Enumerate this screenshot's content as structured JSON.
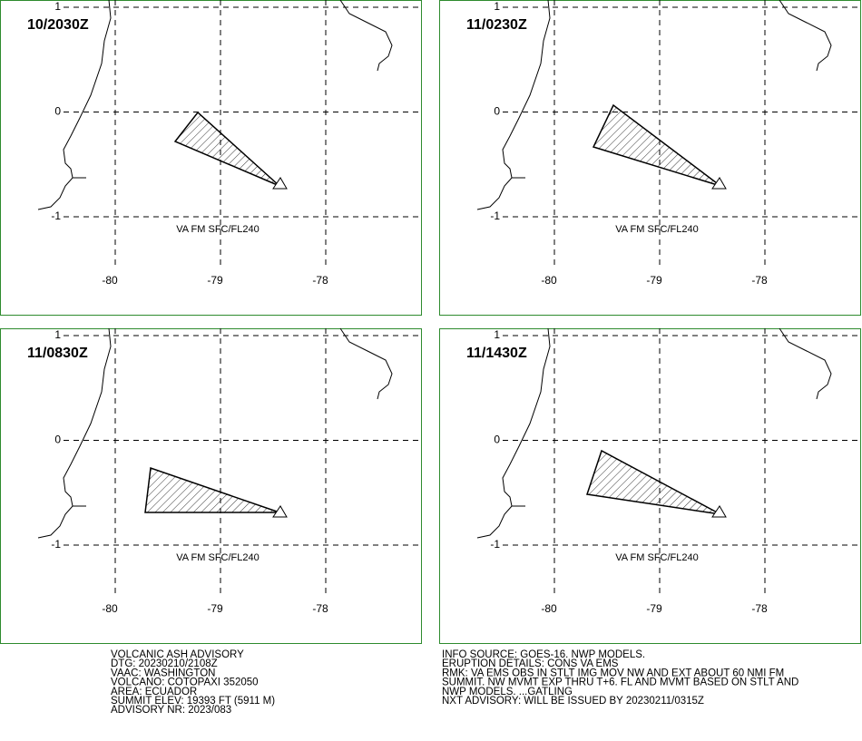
{
  "map": {
    "lat_ticks": [
      1,
      0,
      -1
    ],
    "lon_ticks": [
      -80,
      -79,
      -78
    ],
    "panels": [
      {
        "time": "10/2030Z",
        "label": "VA FM SFC/FL240"
      },
      {
        "time": "11/0230Z",
        "label": "VA FM SFC/FL240"
      },
      {
        "time": "11/0830Z",
        "label": "VA FM SFC/FL240"
      },
      {
        "time": "11/1430Z",
        "label": "VA FM SFC/FL240"
      }
    ]
  },
  "advisory": {
    "left": [
      "VOLCANIC ASH ADVISORY",
      "DTG: 20230210/2108Z",
      "VAAC: WASHINGTON",
      "VOLCANO: COTOPAXI 352050",
      "AREA: ECUADOR",
      "SUMMIT ELEV: 19393 FT (5911 M)",
      "ADVISORY NR: 2023/083"
    ],
    "right": [
      "INFO SOURCE: GOES-16. NWP MODELS.",
      "ERUPTION DETAILS: CONS VA EMS",
      "RMK: VA EMS OBS IN STLT IMG MOV NW AND EXT ABOUT 60 NMI FM",
      "SUMMIT. NW MVMT EXP THRU T+6. FL AND MVMT BASED ON STLT AND",
      "NWP MODELS. ...GATLING",
      "NXT ADVISORY: WILL BE ISSUED BY 20230211/0315Z"
    ]
  }
}
